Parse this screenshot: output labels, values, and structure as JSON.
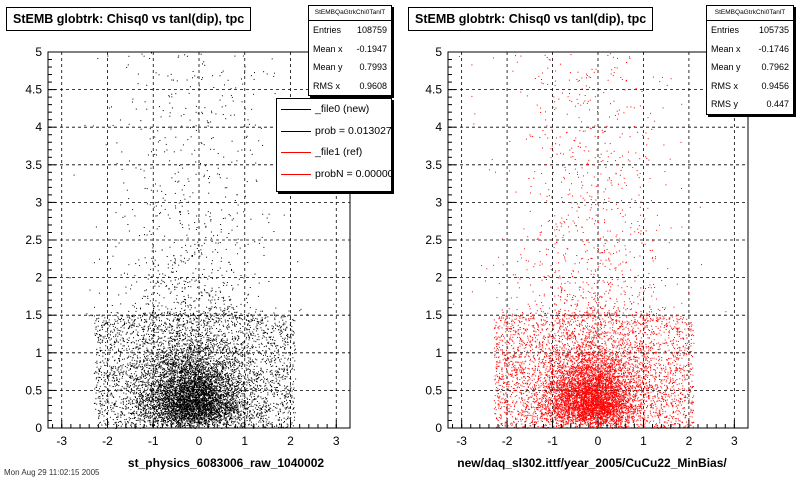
{
  "footer": "Mon Aug 29 11:02:15 2005",
  "charts": [
    {
      "title": "StEMB globtrk: Chisq0 vs tanl(dip), tpc",
      "stats": {
        "name": "StEMBQaGtrkChi0TanlT",
        "rows": [
          {
            "label": "Entries",
            "value": "108759"
          },
          {
            "label": "Mean x",
            "value": "-0.1947"
          },
          {
            "label": "Mean y",
            "value": "0.7993"
          },
          {
            "label": "RMS x",
            "value": "0.9608"
          }
        ]
      },
      "legend": [
        {
          "text": "_file0 (new)",
          "color": "#000000"
        },
        {
          "text": "prob = 0.013027",
          "color": "#000000"
        },
        {
          "text": "_file1 (ref)",
          "color": "#ff0000"
        },
        {
          "text": "probN = 0.000000",
          "color": "#ff0000"
        }
      ],
      "xcaption": "st_physics_6083006_raw_1040002"
    },
    {
      "title": "StEMB globtrk: Chisq0 vs tanl(dip), tpc",
      "stats": {
        "name": "StEMBQaGtrkChi0TanlT",
        "rows": [
          {
            "label": "Entries",
            "value": "105735"
          },
          {
            "label": "Mean x",
            "value": "-0.1746"
          },
          {
            "label": "Mean y",
            "value": "0.7962"
          },
          {
            "label": "RMS x",
            "value": "0.9456"
          },
          {
            "label": "RMS y",
            "value": "0.447"
          }
        ]
      },
      "xcaption": "new/daq_sl302.ittf/year_2005/CuCu22_MinBias/"
    }
  ],
  "chart_data": [
    {
      "type": "scatter",
      "title": "StEMB globtrk: Chisq0 vs tanl(dip), tpc",
      "xlabel": "st_physics_6083006_raw_1040002",
      "ylabel": "",
      "xlim": [
        -3.3,
        3.3
      ],
      "ylim": [
        0,
        5
      ],
      "xticks": [
        "-3",
        "-2",
        "-1",
        "0",
        "1",
        "2",
        "3"
      ],
      "yticks": [
        "0",
        "0.5",
        "1",
        "1.5",
        "2",
        "2.5",
        "3",
        "3.5",
        "4",
        "4.5",
        "5"
      ],
      "grid": true,
      "marker_color": "#000000",
      "entries": 108759,
      "mean_x": -0.1947,
      "mean_y": 0.7993,
      "rms_x": 0.9608,
      "density": {
        "core_x": [
          -0.7,
          0.7
        ],
        "core_y": [
          0,
          1.5
        ],
        "band_x": [
          -2.3,
          2.1
        ],
        "band_y": [
          0,
          1.5
        ],
        "tail_y_max": 5
      }
    },
    {
      "type": "scatter",
      "title": "StEMB globtrk: Chisq0 vs tanl(dip), tpc",
      "xlabel": "new/daq_sl302.ittf/year_2005/CuCu22_MinBias/",
      "ylabel": "",
      "xlim": [
        -3.3,
        3.3
      ],
      "ylim": [
        0,
        5
      ],
      "xticks": [
        "-3",
        "-2",
        "-1",
        "0",
        "1",
        "2",
        "3"
      ],
      "yticks": [
        "0",
        "0.5",
        "1",
        "1.5",
        "2",
        "2.5",
        "3",
        "3.5",
        "4",
        "4.5",
        "5"
      ],
      "grid": true,
      "marker_color": "#ff0000",
      "entries": 105735,
      "mean_x": -0.1746,
      "mean_y": 0.7962,
      "rms_x": 0.9456,
      "rms_y": 0.447,
      "density": {
        "core_x": [
          -0.7,
          0.7
        ],
        "core_y": [
          0,
          1.5
        ],
        "band_x": [
          -2.3,
          2.1
        ],
        "band_y": [
          0,
          1.5
        ],
        "tail_y_max": 5
      }
    }
  ]
}
